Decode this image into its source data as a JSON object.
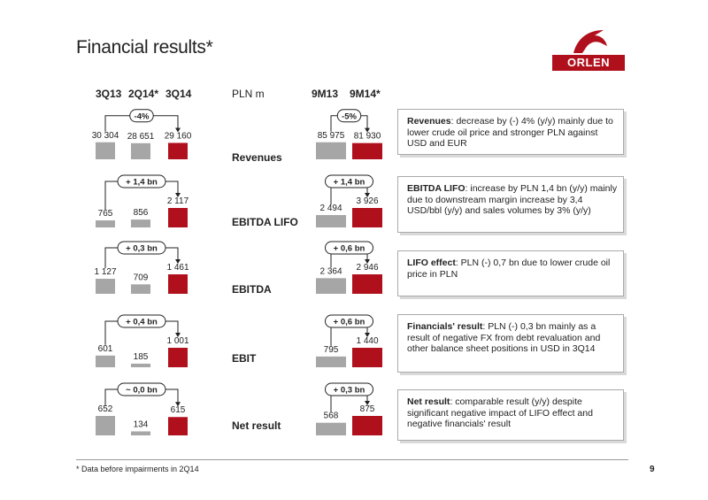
{
  "title": "Financial results*",
  "logo_text": "ORLEN",
  "headers": {
    "quarters": [
      "3Q13",
      "2Q14*",
      "3Q14"
    ],
    "unit": "PLN m",
    "ytd": [
      "9M13",
      "9M14*"
    ]
  },
  "colors": {
    "current": "#b0101c",
    "previous": "#a6a6a6",
    "brand": "#b0101c"
  },
  "chart_data": {
    "type": "bar",
    "groups": [
      {
        "metric": "Revenues",
        "quarterly": {
          "categories": [
            "3Q13",
            "2Q14*",
            "3Q14"
          ],
          "values": [
            30304,
            28651,
            29160
          ],
          "labels": [
            "30 304",
            "28 651",
            "29 160"
          ],
          "change": "-4%"
        },
        "ytd": {
          "categories": [
            "9M13",
            "9M14*"
          ],
          "values": [
            85975,
            81930
          ],
          "labels": [
            "85 975",
            "81 930"
          ],
          "change": "-5%"
        }
      },
      {
        "metric": "EBITDA LIFO",
        "quarterly": {
          "categories": [
            "3Q13",
            "2Q14*",
            "3Q14"
          ],
          "values": [
            765,
            856,
            2117
          ],
          "labels": [
            "765",
            "856",
            "2 117"
          ],
          "change": "+ 1,4 bn"
        },
        "ytd": {
          "categories": [
            "9M13",
            "9M14*"
          ],
          "values": [
            2494,
            3926
          ],
          "labels": [
            "2 494",
            "3 926"
          ],
          "change": "+ 1,4 bn"
        }
      },
      {
        "metric": "EBITDA",
        "quarterly": {
          "categories": [
            "3Q13",
            "2Q14*",
            "3Q14"
          ],
          "values": [
            1127,
            709,
            1461
          ],
          "labels": [
            "1 127",
            "709",
            "1 461"
          ],
          "change": "+ 0,3 bn"
        },
        "ytd": {
          "categories": [
            "9M13",
            "9M14*"
          ],
          "values": [
            2364,
            2946
          ],
          "labels": [
            "2 364",
            "2 946"
          ],
          "change": "+ 0,6 bn"
        }
      },
      {
        "metric": "EBIT",
        "quarterly": {
          "categories": [
            "3Q13",
            "2Q14*",
            "3Q14"
          ],
          "values": [
            601,
            185,
            1001
          ],
          "labels": [
            "601",
            "185",
            "1 001"
          ],
          "change": "+ 0,4 bn"
        },
        "ytd": {
          "categories": [
            "9M13",
            "9M14*"
          ],
          "values": [
            795,
            1440
          ],
          "labels": [
            "795",
            "1 440"
          ],
          "change": "+ 0,6 bn"
        }
      },
      {
        "metric": "Net result",
        "quarterly": {
          "categories": [
            "3Q13",
            "2Q14*",
            "3Q14"
          ],
          "values": [
            652,
            134,
            615
          ],
          "labels": [
            "652",
            "134",
            "615"
          ],
          "change": "~ 0,0 bn"
        },
        "ytd": {
          "categories": [
            "9M13",
            "9M14*"
          ],
          "values": [
            568,
            875
          ],
          "labels": [
            "568",
            "875"
          ],
          "change": "+ 0,3 bn"
        }
      }
    ]
  },
  "comments": [
    {
      "bold": "Revenues",
      "text": ": decrease by (-) 4% (y/y)  mainly due to lower crude oil price and stronger PLN against USD and EUR"
    },
    {
      "bold": "EBITDA LIFO",
      "text": ": increase by PLN 1,4 bn (y/y) mainly due to downstream margin increase by 3,4 USD/bbl (y/y) and sales volumes by 3% (y/y)"
    },
    {
      "bold": "LIFO effect",
      "text": ": PLN (-) 0,7 bn due to lower crude oil price in PLN"
    },
    {
      "bold": "Financials' result",
      "text": ": PLN (-) 0,3 bn mainly as a result of negative FX from debt revaluation and other balance sheet positions in USD in 3Q14"
    },
    {
      "bold": "Net result",
      "text": ": comparable result (y/y) despite significant negative impact of LIFO effect and negative financials' result"
    }
  ],
  "footnote": "* Data before impairments in 2Q14",
  "page_number": "9"
}
